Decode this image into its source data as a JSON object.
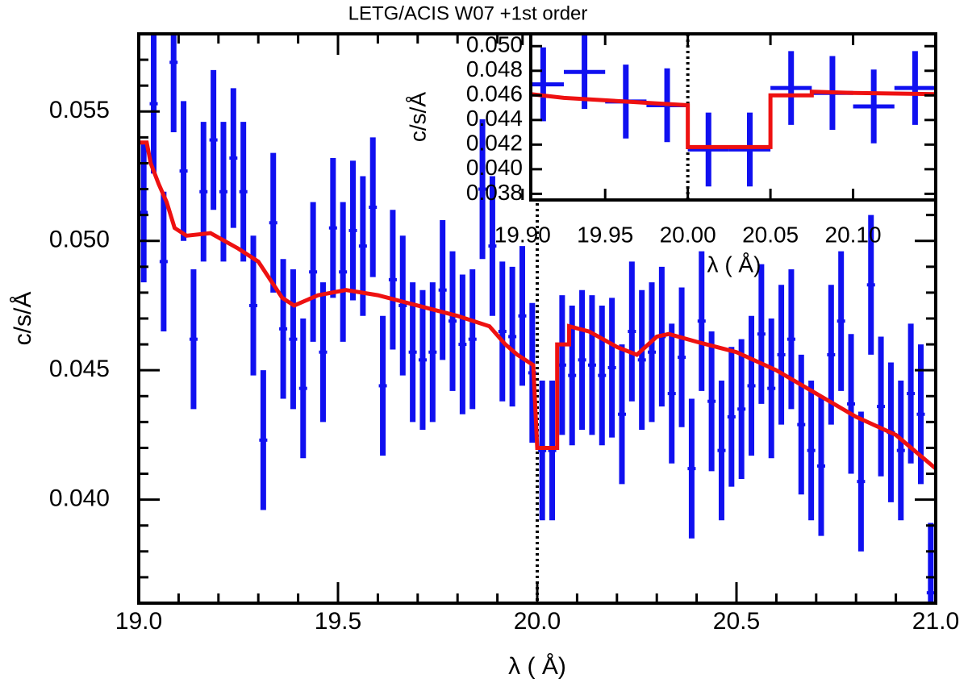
{
  "chart_data": [
    {
      "type": "errorbar",
      "title": "LETG/ACIS W07 +1st order",
      "xlabel": "λ ( Å)",
      "ylabel": "c/s/Å",
      "xlim": [
        19.0,
        21.0
      ],
      "ylim": [
        0.036,
        0.058
      ],
      "xticks": [
        {
          "value": 19.0,
          "label": "19.0"
        },
        19.5,
        {
          "value": 20.0,
          "label": "20.0"
        },
        20.5,
        {
          "value": 21.0,
          "label": "21.0"
        }
      ],
      "yticks": [
        {
          "value": 0.04,
          "label": "0.040"
        },
        0.045,
        {
          "value": 0.05,
          "label": "0.050"
        },
        0.055
      ],
      "xminorticks": [
        19.1,
        19.2,
        19.3,
        19.4,
        19.6,
        19.7,
        19.8,
        19.9,
        20.1,
        20.2,
        20.3,
        20.4,
        20.6,
        20.7,
        20.8,
        20.9
      ],
      "yminorticks": [
        0.037,
        0.038,
        0.039,
        0.041,
        0.042,
        0.043,
        0.044,
        0.046,
        0.047,
        0.048,
        0.049,
        0.051,
        0.052,
        0.053,
        0.054,
        0.056,
        0.057
      ],
      "vline": 20.0,
      "points": {
        "color": "#1010f0",
        "x": [
          19.0125,
          19.0375,
          19.0625,
          19.0875,
          19.1125,
          19.1375,
          19.1625,
          19.1875,
          19.2125,
          19.2375,
          19.2625,
          19.2875,
          19.3125,
          19.3375,
          19.3625,
          19.3875,
          19.4125,
          19.4375,
          19.4625,
          19.4875,
          19.5125,
          19.5375,
          19.5625,
          19.5875,
          19.6125,
          19.6375,
          19.6625,
          19.6875,
          19.7125,
          19.7375,
          19.7625,
          19.7875,
          19.8125,
          19.8375,
          19.8625,
          19.8875,
          19.9125,
          19.9375,
          19.9625,
          19.9875,
          20.0125,
          20.0375,
          20.0625,
          20.0875,
          20.1125,
          20.1375,
          20.1625,
          20.1875,
          20.2125,
          20.2375,
          20.2625,
          20.2875,
          20.3125,
          20.3375,
          20.3625,
          20.3875,
          20.4125,
          20.4375,
          20.4625,
          20.4875,
          20.5125,
          20.5375,
          20.5625,
          20.5875,
          20.6125,
          20.6375,
          20.6625,
          20.6875,
          20.7125,
          20.7375,
          20.7625,
          20.7875,
          20.8125,
          20.8375,
          20.8625,
          20.8875,
          20.9125,
          20.9375,
          20.9625,
          20.9875
        ],
        "values": [
          0.0511,
          0.0553,
          0.0492,
          0.0569,
          0.0527,
          0.0462,
          0.0519,
          0.0539,
          0.0519,
          0.0532,
          0.0519,
          0.0475,
          0.0423,
          0.0507,
          0.0466,
          0.0462,
          0.0443,
          0.0488,
          0.0457,
          0.0505,
          0.0488,
          0.0504,
          0.0498,
          0.0513,
          0.0444,
          0.0485,
          0.0475,
          0.0457,
          0.0454,
          0.0457,
          0.0481,
          0.0469,
          0.046,
          0.0462,
          0.052,
          0.0498,
          0.0465,
          0.0463,
          0.0471,
          0.0449,
          0.0419,
          0.0419,
          0.0452,
          0.0448,
          0.0454,
          0.0452,
          0.0448,
          0.0451,
          0.0433,
          0.0465,
          0.0454,
          0.0457,
          0.0463,
          0.0441,
          0.0455,
          0.0412,
          0.0469,
          0.0438,
          0.0419,
          0.0432,
          0.0435,
          0.0444,
          0.0464,
          0.0443,
          0.0456,
          0.0462,
          0.0429,
          0.0419,
          0.0413,
          0.0456,
          0.0469,
          0.0437,
          0.0407,
          0.0483,
          0.0436,
          0.0426,
          0.0419,
          0.0441,
          0.0433,
          0.0364
        ],
        "errors": [
          0.0027,
          0.0027,
          0.0027,
          0.0027,
          0.0027,
          0.0027,
          0.0027,
          0.0027,
          0.0027,
          0.0027,
          0.0027,
          0.0027,
          0.0027,
          0.0027,
          0.0027,
          0.0027,
          0.0027,
          0.0027,
          0.0027,
          0.0027,
          0.0027,
          0.0027,
          0.0027,
          0.0027,
          0.0027,
          0.0027,
          0.0027,
          0.0027,
          0.0027,
          0.0027,
          0.0027,
          0.0027,
          0.0027,
          0.0027,
          0.0027,
          0.0027,
          0.0027,
          0.0027,
          0.0027,
          0.0027,
          0.0027,
          0.0027,
          0.0027,
          0.0027,
          0.0027,
          0.0027,
          0.0027,
          0.0027,
          0.0027,
          0.0027,
          0.0027,
          0.0027,
          0.0027,
          0.0027,
          0.0027,
          0.0027,
          0.0027,
          0.0027,
          0.0027,
          0.0027,
          0.0027,
          0.0027,
          0.0027,
          0.0027,
          0.0027,
          0.0027,
          0.0027,
          0.0027,
          0.0027,
          0.0027,
          0.0027,
          0.0027,
          0.0027,
          0.0027,
          0.0027,
          0.0027,
          0.0027,
          0.0027,
          0.0027,
          0.0027
        ]
      },
      "model": {
        "color": "#ee1111",
        "x": [
          19.0,
          19.02,
          19.03,
          19.05,
          19.07,
          19.09,
          19.12,
          19.18,
          19.25,
          19.3,
          19.33,
          19.36,
          19.39,
          19.45,
          19.52,
          19.6,
          19.7,
          19.8,
          19.88,
          19.92,
          19.95,
          19.99,
          20.0,
          20.05,
          20.05,
          20.08,
          20.08,
          20.13,
          20.2,
          20.25,
          20.3,
          20.33,
          20.4,
          20.5,
          20.6,
          20.7,
          20.8,
          20.9,
          21.0
        ],
        "values": [
          0.0538,
          0.0538,
          0.053,
          0.0522,
          0.0515,
          0.0505,
          0.0502,
          0.0503,
          0.0497,
          0.0492,
          0.0485,
          0.0478,
          0.0475,
          0.0479,
          0.0481,
          0.0479,
          0.0475,
          0.0471,
          0.0467,
          0.046,
          0.0456,
          0.0452,
          0.042,
          0.042,
          0.046,
          0.046,
          0.0467,
          0.0465,
          0.0459,
          0.0456,
          0.0463,
          0.0464,
          0.0461,
          0.0457,
          0.045,
          0.0441,
          0.0432,
          0.0425,
          0.0412
        ]
      }
    },
    {
      "type": "errorbar",
      "xlabel": "λ ( Å)",
      "ylabel": "c/s/Å",
      "xlim": [
        19.905,
        20.15
      ],
      "ylim": [
        0.0375,
        0.051
      ],
      "xticks": [
        {
          "value": 19.9,
          "label": "19.90"
        },
        19.95,
        {
          "value": 20.0,
          "label": "20.00"
        },
        20.05,
        {
          "value": 20.1,
          "label": "20.10"
        }
      ],
      "yticks": [
        0.038,
        {
          "value": 0.04,
          "label": "0.040"
        },
        0.042,
        0.044,
        0.046,
        0.048,
        {
          "value": 0.05,
          "label": "0.050"
        }
      ],
      "vline": 20.0,
      "points": {
        "color": "#1010f0",
        "x": [
          19.9125,
          19.9375,
          19.9625,
          19.9875,
          20.0125,
          20.0375,
          20.0625,
          20.0875,
          20.1125,
          20.1375
        ],
        "values": [
          0.0469,
          0.0479,
          0.0455,
          0.0452,
          0.0416,
          0.0416,
          0.0466,
          0.0462,
          0.0451,
          0.0466
        ],
        "errors": [
          0.003,
          0.003,
          0.003,
          0.003,
          0.003,
          0.003,
          0.003,
          0.003,
          0.003,
          0.003
        ]
      },
      "model": {
        "color": "#ee1111",
        "x": [
          19.905,
          19.925,
          19.95,
          19.975,
          20.0,
          20.0,
          20.05,
          20.05,
          20.075,
          20.075,
          20.1,
          20.15
        ],
        "values": [
          0.0461,
          0.0458,
          0.0456,
          0.0454,
          0.0452,
          0.0418,
          0.0418,
          0.046,
          0.046,
          0.0463,
          0.0462,
          0.0461
        ]
      }
    }
  ]
}
